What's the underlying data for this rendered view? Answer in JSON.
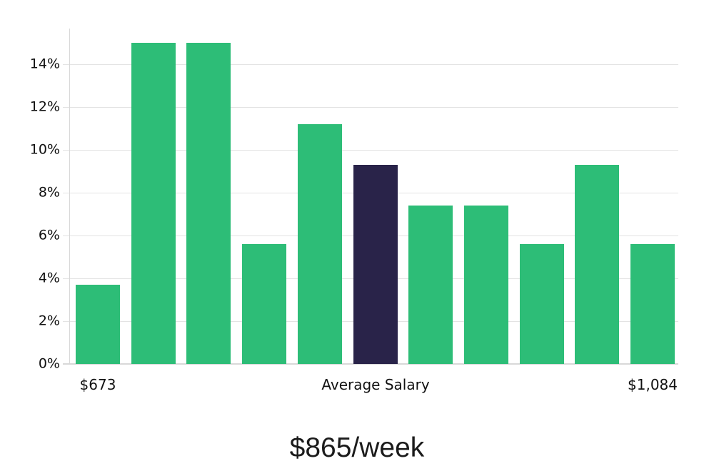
{
  "chart_data": {
    "type": "bar",
    "title": "",
    "xlabel": "",
    "ylabel": "",
    "caption": "$865/week",
    "grid": "horizontal",
    "legend": "none",
    "ylim": [
      0,
      15.7
    ],
    "y_unit": "%",
    "y_ticks": [
      {
        "value": 0,
        "label": "0%"
      },
      {
        "value": 2,
        "label": "2%"
      },
      {
        "value": 4,
        "label": "4%"
      },
      {
        "value": 6,
        "label": "6%"
      },
      {
        "value": 8,
        "label": "8%"
      },
      {
        "value": 10,
        "label": "10%"
      },
      {
        "value": 12,
        "label": "12%"
      },
      {
        "value": 14,
        "label": "14%"
      }
    ],
    "bars": {
      "values_pct": [
        3.7,
        15,
        15,
        5.6,
        11.2,
        9.3,
        7.4,
        7.4,
        5.6,
        9.3,
        5.6
      ],
      "highlight_index": 5
    },
    "x_annotations": [
      {
        "bar_index": 0,
        "label": "$673"
      },
      {
        "bar_index": 5,
        "label": "Average Salary"
      },
      {
        "bar_index": 10,
        "label": "$1,084"
      }
    ],
    "colors": {
      "bar": "#2dbd77",
      "highlight_bar": "#292349",
      "gridline": "#e3e3e3",
      "axis_line": "#d8d8d8",
      "label_text": "#111111"
    }
  }
}
